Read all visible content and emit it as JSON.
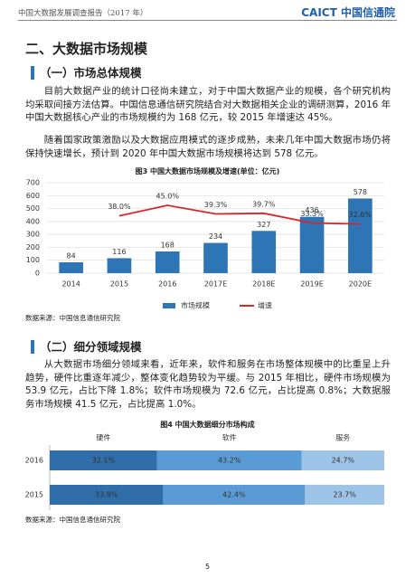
{
  "header": {
    "title": "中国大数据发展调查报告（2017 年）",
    "logo_en": "CAICT",
    "logo_cn": "中国信通院"
  },
  "section": {
    "title": "二、大数据市场规模"
  },
  "subsections": [
    {
      "title": "（一）市场总体规模",
      "paragraphs": [
        "目前大数据产业的统计口径尚未建立，对于中国大数据产业的规模，各个研究机构均采取间接方法估算。中国信息通信研究院结合对大数据相关企业的调研测算，2016 年中国大数据核心产业的市场规模约为 168 亿元，较 2015 年增速达 45%。",
        "随着国家政策激励以及大数据应用模式的逐步成熟，未来几年中国大数据市场仍将保持快速增长，预计到 2020 年中国大数据市场规模将达到 578 亿元。"
      ],
      "source": "数据来源：中国信息通信研究院"
    },
    {
      "title": "（二）细分领域规模",
      "paragraphs": [
        "从大数据市场细分领域来看，近年来，软件和服务在市场整体规模中的比重呈上升趋势，硬件比重逐年减少，整体变化趋势较为平缓。与 2015 年相比，硬件市场规模为 53.9 亿元，占比下降 1.8%；软件市场规模为 72.6 亿元，占比提高 0.8%；大数据服务市场规模 41.5 亿元，占比提高 1.0%。"
      ],
      "source": "数据来源：中国信息通信研究院"
    }
  ],
  "chart_data": [
    {
      "type": "bar",
      "title": "图3 中国大数据市场规模及增速(单位：亿元)",
      "categories": [
        "2014",
        "2015",
        "2016",
        "2017E",
        "2018E",
        "2019E",
        "2020E"
      ],
      "series": [
        {
          "name": "市场规模",
          "type": "bar",
          "color": "#2e75b6",
          "values": [
            84,
            116,
            168,
            234,
            327,
            436,
            578
          ]
        },
        {
          "name": "增速",
          "type": "line",
          "axis": "y2",
          "color": "#d9262b",
          "values": [
            null,
            38.0,
            45.0,
            39.3,
            39.7,
            33.3,
            32.6
          ],
          "value_labels": [
            null,
            "38.0%",
            "45.0%",
            "39.3%",
            "39.7%",
            "33.3%",
            "32.6%"
          ]
        }
      ],
      "ylim": [
        0,
        700
      ],
      "yticks": [
        0,
        100,
        200,
        300,
        400,
        500,
        600,
        700
      ],
      "y2lim": [
        0,
        60
      ],
      "grid": true,
      "legend": "bottom"
    },
    {
      "type": "stacked_barh",
      "title": "图4 中国大数据细分市场构成",
      "categories": [
        "2016",
        "2015"
      ],
      "series": [
        {
          "name": "硬件",
          "color": "#2f6ea8",
          "values": [
            32.1,
            33.9
          ],
          "value_labels": [
            "32.1%",
            "33.9%"
          ]
        },
        {
          "name": "软件",
          "color": "#5b9bd5",
          "values": [
            43.2,
            42.4
          ],
          "value_labels": [
            "43.2%",
            "42.4%"
          ]
        },
        {
          "name": "服务",
          "color": "#9dc3e6",
          "values": [
            24.7,
            23.7
          ],
          "value_labels": [
            "24.7%",
            "23.7%"
          ]
        }
      ],
      "xlim": [
        0,
        100
      ],
      "legend": "top"
    }
  ],
  "page_number": "5"
}
